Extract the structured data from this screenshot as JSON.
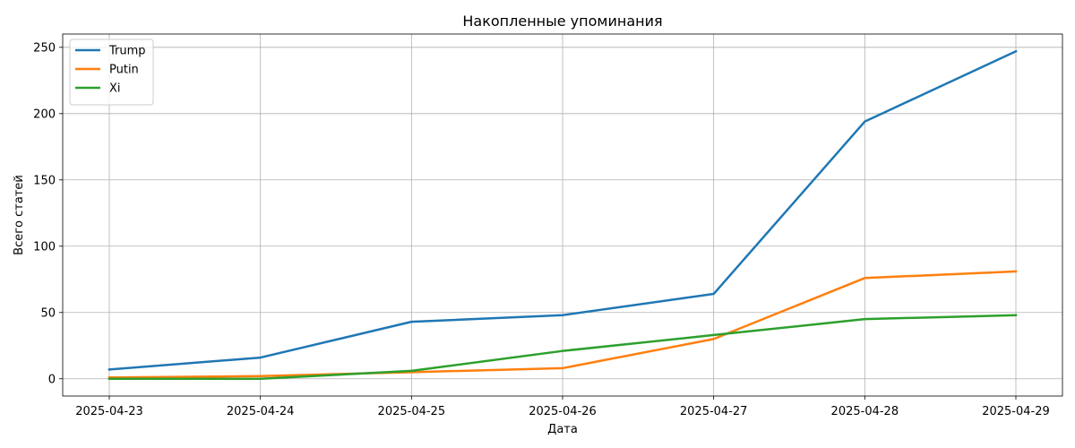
{
  "chart_data": {
    "type": "line",
    "title": "Накопленные упоминания",
    "xlabel": "Дата",
    "ylabel": "Всего статей",
    "categories": [
      "2025-04-23",
      "2025-04-24",
      "2025-04-25",
      "2025-04-26",
      "2025-04-27",
      "2025-04-28",
      "2025-04-29"
    ],
    "ylim": [
      -13,
      260
    ],
    "yticks": [
      0,
      50,
      100,
      150,
      200,
      250
    ],
    "grid": true,
    "legend_position": "top-left",
    "series": [
      {
        "name": "Trump",
        "color": "#1f77b4",
        "values": [
          7,
          16,
          43,
          48,
          64,
          194,
          247
        ]
      },
      {
        "name": "Putin",
        "color": "#ff7f0e",
        "values": [
          1,
          2,
          5,
          8,
          30,
          76,
          81
        ]
      },
      {
        "name": "Xi",
        "color": "#2ca02c",
        "values": [
          0,
          0,
          6,
          21,
          33,
          45,
          48
        ]
      }
    ]
  }
}
